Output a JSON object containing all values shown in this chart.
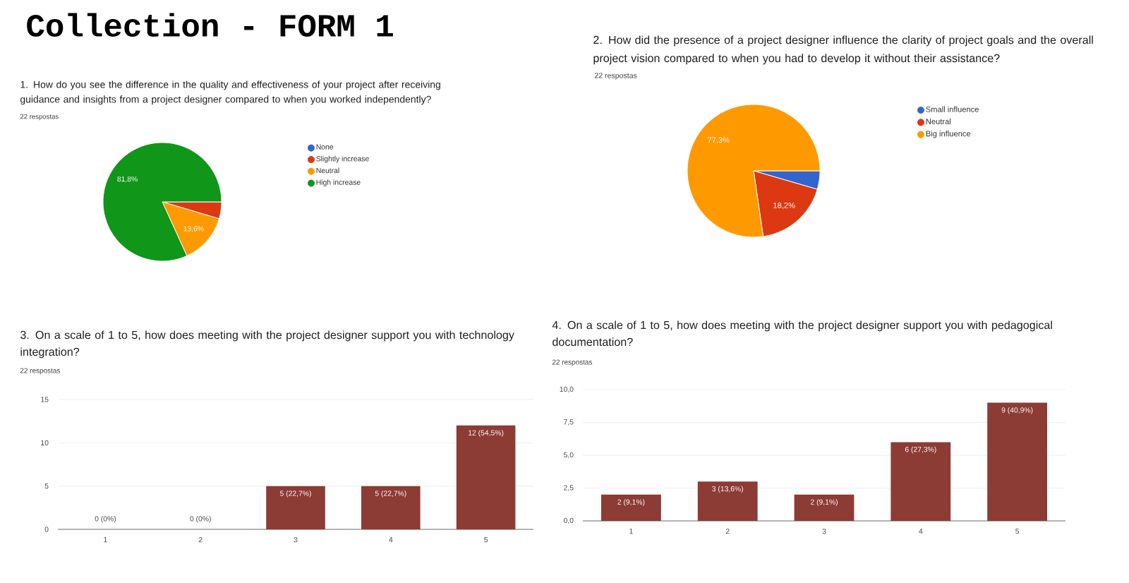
{
  "chart_data": [
    {
      "type": "other",
      "title": "Collection - FORM 1"
    },
    {
      "type": "pie",
      "title": "1. How do you see the difference in the quality and effectiveness of your project after receiving guidance and insights from a project designer compared to when you worked independently?",
      "subtitle": "22 respostas",
      "categories": [
        "None",
        "Slightly increase",
        "Neutral",
        "High increase"
      ],
      "values": [
        0,
        4.6,
        13.6,
        81.8
      ],
      "colors": [
        "#3366cc",
        "#dc3912",
        "#ff9900",
        "#109618"
      ],
      "value_labels": [
        null,
        null,
        "13,6%",
        "81,8%"
      ],
      "legend": "right"
    },
    {
      "type": "pie",
      "title": "2. How did the presence of a project designer influence the clarity of project goals and the overall project vision compared to when you had to develop it without their assistance?",
      "subtitle": "22 respostas",
      "categories": [
        "Small influence",
        "Neutral",
        "Big influence"
      ],
      "values": [
        4.5,
        18.2,
        77.3
      ],
      "colors": [
        "#3366cc",
        "#dc3912",
        "#ff9900"
      ],
      "value_labels": [
        null,
        "18,2%",
        "77,3%"
      ],
      "legend": "right"
    },
    {
      "type": "bar",
      "title": "3. On a scale of 1 to 5, how does meeting with the project designer support you with technology integration?",
      "subtitle": "22 respostas",
      "categories": [
        "1",
        "2",
        "3",
        "4",
        "5"
      ],
      "values": [
        0,
        0,
        5,
        5,
        12
      ],
      "color": "#8c3b35",
      "value_labels": [
        "0 (0%)",
        "0 (0%)",
        "5 (22,7%)",
        "5 (22,7%)",
        "12 (54,5%)"
      ],
      "ylim": [
        0,
        15
      ],
      "yticks": [
        0,
        5,
        10,
        15
      ],
      "grid": "y"
    },
    {
      "type": "bar",
      "title": "4. On a scale of 1 to 5, how does meeting with the project designer support you with pedagogical documentation?",
      "subtitle": "22 respostas",
      "categories": [
        "1",
        "2",
        "3",
        "4",
        "5"
      ],
      "values": [
        2,
        3,
        2,
        6,
        9
      ],
      "color": "#8c3b35",
      "value_labels": [
        "2 (9,1%)",
        "3 (13,6%)",
        "2 (9,1%)",
        "6 (27,3%)",
        "9 (40,9%)"
      ],
      "ylim": [
        0,
        10
      ],
      "yticks": [
        {
          "value": 0,
          "label": "0,0"
        },
        {
          "value": 2.5,
          "label": "2,5"
        },
        {
          "value": 5,
          "label": "5,0"
        },
        {
          "value": 7.5,
          "label": "7,5"
        },
        {
          "value": 10,
          "label": "10,0"
        }
      ],
      "grid": "y"
    }
  ]
}
